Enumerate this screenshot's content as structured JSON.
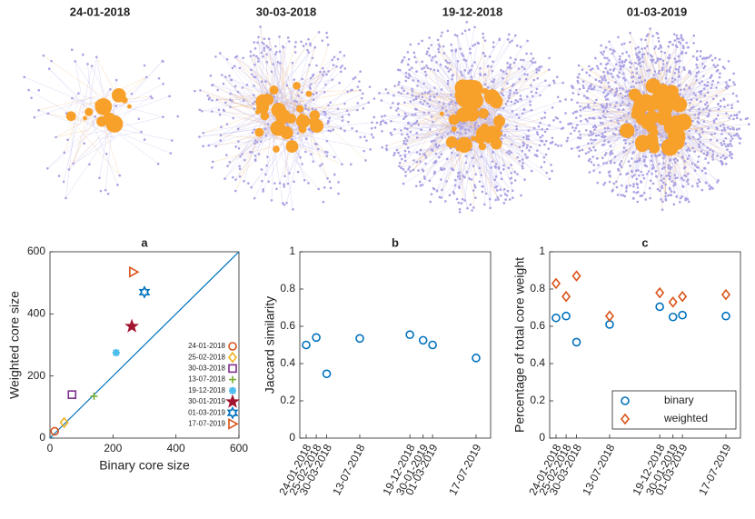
{
  "networks": [
    {
      "title": "24-01-2018"
    },
    {
      "title": "30-03-2018"
    },
    {
      "title": "19-12-2018"
    },
    {
      "title": "01-03-2019"
    }
  ],
  "chart_data": [
    {
      "type": "scatter",
      "title": "a",
      "xlabel": "Binary core size",
      "ylabel": "Weighted core size",
      "xlim": [
        0,
        600
      ],
      "ylim": [
        0,
        600
      ],
      "xticks": [
        0,
        200,
        400,
        600
      ],
      "yticks": [
        0,
        200,
        400,
        600
      ],
      "identity_line": true,
      "line_color": "#0072bd",
      "series": [
        {
          "name": "24-01-2018",
          "color": "#d95319",
          "marker": "circle",
          "x": 15,
          "y": 22
        },
        {
          "name": "25-02-2018",
          "color": "#edb120",
          "marker": "diamond",
          "x": 45,
          "y": 50
        },
        {
          "name": "30-03-2018",
          "color": "#7e2f8e",
          "marker": "square",
          "x": 70,
          "y": 140
        },
        {
          "name": "13-07-2018",
          "color": "#77ac30",
          "marker": "plus",
          "x": 140,
          "y": 135
        },
        {
          "name": "19-12-2018",
          "color": "#4dbeee",
          "marker": "asterisk",
          "x": 210,
          "y": 275
        },
        {
          "name": "30-01-2019",
          "color": "#a2142f",
          "marker": "pentagram",
          "x": 260,
          "y": 360
        },
        {
          "name": "01-03-2019",
          "color": "#0072bd",
          "marker": "hexagram",
          "x": 300,
          "y": 470
        },
        {
          "name": "17-07-2019",
          "color": "#d95319",
          "marker": "triangle-right",
          "x": 265,
          "y": 535
        }
      ]
    },
    {
      "type": "scatter-dates",
      "title": "b",
      "ylabel": "Jaccard similarity",
      "x": [
        "24-01-2018",
        "25-02-2018",
        "30-03-2018",
        "13-07-2018",
        "19-12-2018",
        "30-01-2019",
        "01-03-2019",
        "17-07-2019"
      ],
      "values": [
        0.5,
        0.54,
        0.345,
        0.535,
        0.555,
        0.525,
        0.5,
        0.43
      ],
      "color": "#0072bd",
      "marker": "circle",
      "ylim": [
        0,
        1
      ],
      "yticks": [
        0,
        0.2,
        0.4,
        0.6,
        0.8,
        1
      ]
    },
    {
      "type": "scatter-dates",
      "title": "c",
      "ylabel": "Percentage of total core weight",
      "x": [
        "24-01-2018",
        "25-02-2018",
        "30-03-2018",
        "13-07-2018",
        "19-12-2018",
        "30-01-2019",
        "01-03-2019",
        "17-07-2019"
      ],
      "series": [
        {
          "name": "binary",
          "color": "#0072bd",
          "marker": "circle",
          "values": [
            0.645,
            0.655,
            0.515,
            0.61,
            0.705,
            0.65,
            0.66,
            0.655
          ]
        },
        {
          "name": "weighted",
          "color": "#d95319",
          "marker": "diamond",
          "values": [
            0.83,
            0.76,
            0.87,
            0.655,
            0.78,
            0.73,
            0.76,
            0.77
          ]
        }
      ],
      "ylim": [
        0,
        1
      ],
      "yticks": [
        0,
        0.2,
        0.4,
        0.6,
        0.8,
        1
      ],
      "legend": "lower right"
    }
  ]
}
